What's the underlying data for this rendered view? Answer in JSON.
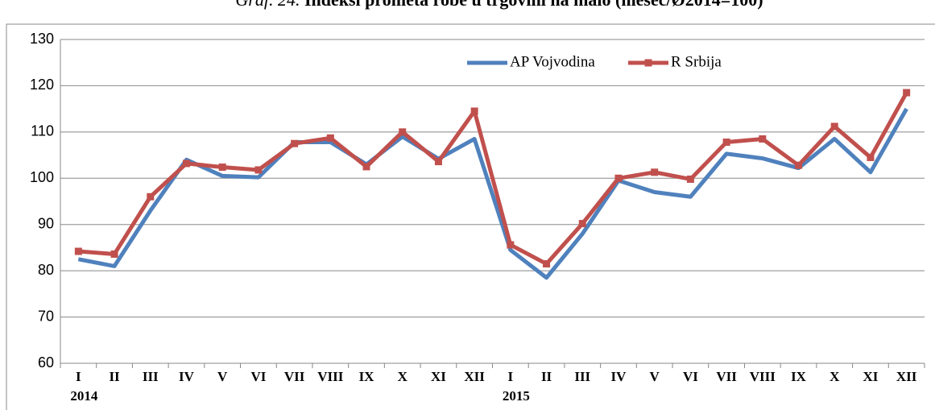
{
  "chart_data": {
    "type": "line",
    "title_prefix": "Graf. 24.",
    "title": "Indeksi prometa robe u trgovini na malo (mesec/Ø2014=100)",
    "categories": [
      "I",
      "II",
      "III",
      "IV",
      "V",
      "VI",
      "VII",
      "VIII",
      "IX",
      "X",
      "XI",
      "XII",
      "I",
      "II",
      "III",
      "IV",
      "V",
      "VI",
      "VII",
      "VIII",
      "IX",
      "X",
      "XI",
      "XII"
    ],
    "year_labels": [
      "2014",
      "2015"
    ],
    "series": [
      {
        "name": "AP Vojvodina",
        "color": "#4f81bd",
        "marker": false,
        "values": [
          82.5,
          81,
          93,
          104,
          100.5,
          100.2,
          107.8,
          107.8,
          103,
          109,
          104.2,
          108.5,
          84.5,
          78.5,
          88,
          99.5,
          97,
          96,
          105.3,
          104.3,
          102.2,
          108.5,
          101.3,
          115
        ]
      },
      {
        "name": "R Srbija",
        "color": "#c0504d",
        "marker": true,
        "values": [
          84.2,
          83.6,
          96,
          103.2,
          102.4,
          101.8,
          107.5,
          108.7,
          102.5,
          110,
          103.6,
          114.5,
          85.6,
          81.5,
          90.2,
          100,
          101.3,
          99.8,
          107.8,
          108.5,
          102.8,
          111.2,
          104.5,
          118.5
        ]
      }
    ],
    "ylim": [
      60,
      130
    ],
    "yticks": [
      60,
      70,
      80,
      90,
      100,
      110,
      120,
      130
    ],
    "grid": true,
    "legend": "top-right"
  }
}
